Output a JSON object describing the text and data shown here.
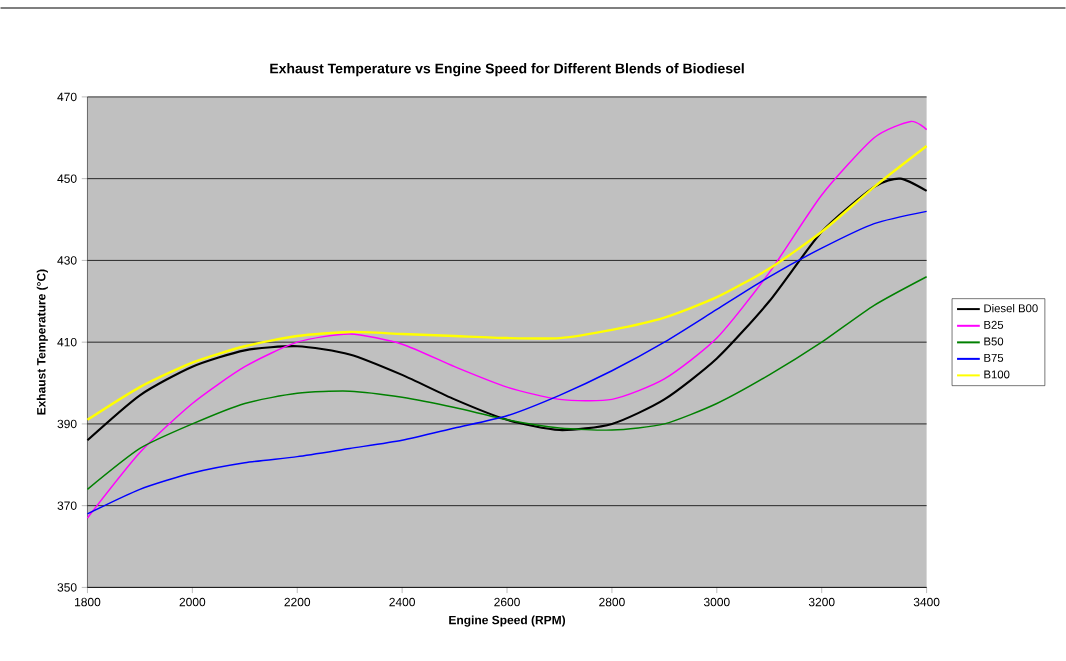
{
  "chart_data": {
    "type": "line",
    "title": "Exhaust Temperature vs Engine Speed for Different Blends of Biodiesel",
    "xlabel": "Engine Speed (RPM)",
    "ylabel": "Exhaust Temperature (°C)",
    "xlim": [
      1800,
      3400
    ],
    "xticks": [
      1800,
      2000,
      2200,
      2400,
      2600,
      2800,
      3000,
      3200,
      3400
    ],
    "ylim": [
      350,
      470
    ],
    "yticks": [
      350,
      370,
      390,
      410,
      430,
      450,
      470
    ],
    "grid": "y",
    "legend": "right",
    "series": [
      {
        "name": "Diesel B00",
        "color": "#000000",
        "x": [
          1800,
          1900,
          2000,
          2100,
          2200,
          2300,
          2400,
          2500,
          2600,
          2700,
          2800,
          2900,
          3000,
          3100,
          3200,
          3300,
          3350,
          3400
        ],
        "values": [
          386,
          397,
          404,
          408,
          409,
          407,
          402,
          396,
          391,
          388.5,
          390,
          396,
          406,
          420,
          437,
          448,
          450,
          447
        ]
      },
      {
        "name": "B25",
        "color": "#ff00ff",
        "x": [
          1800,
          1900,
          2000,
          2100,
          2200,
          2300,
          2400,
          2500,
          2600,
          2700,
          2800,
          2900,
          3000,
          3100,
          3200,
          3300,
          3370,
          3400
        ],
        "values": [
          367,
          383,
          395,
          404,
          410,
          412,
          409.5,
          404,
          399,
          396,
          396,
          401,
          411,
          427,
          446,
          460,
          464,
          462
        ]
      },
      {
        "name": "B50",
        "color": "#008000",
        "x": [
          1800,
          1900,
          2000,
          2100,
          2200,
          2300,
          2400,
          2500,
          2600,
          2700,
          2800,
          2900,
          3000,
          3100,
          3200,
          3300,
          3400
        ],
        "values": [
          374,
          384,
          390,
          395,
          397.5,
          398,
          396.5,
          394,
          391,
          389,
          388.5,
          390,
          395,
          402,
          410,
          419,
          426
        ]
      },
      {
        "name": "B75",
        "color": "#0000ff",
        "x": [
          1800,
          1900,
          2000,
          2100,
          2200,
          2300,
          2400,
          2500,
          2600,
          2700,
          2800,
          2900,
          3000,
          3100,
          3200,
          3300,
          3400
        ],
        "values": [
          368,
          374,
          378,
          380.5,
          382,
          384,
          386,
          389,
          392,
          397,
          403,
          410,
          418,
          426,
          433,
          439,
          442
        ]
      },
      {
        "name": "B100",
        "color": "#ffff00",
        "x": [
          1800,
          1900,
          2000,
          2100,
          2200,
          2300,
          2400,
          2500,
          2600,
          2700,
          2800,
          2900,
          3000,
          3100,
          3200,
          3300,
          3400
        ],
        "values": [
          391,
          399,
          405,
          409,
          411.5,
          412.5,
          412,
          411.5,
          411,
          411,
          413,
          416,
          421,
          428,
          437,
          448,
          458
        ]
      }
    ]
  }
}
